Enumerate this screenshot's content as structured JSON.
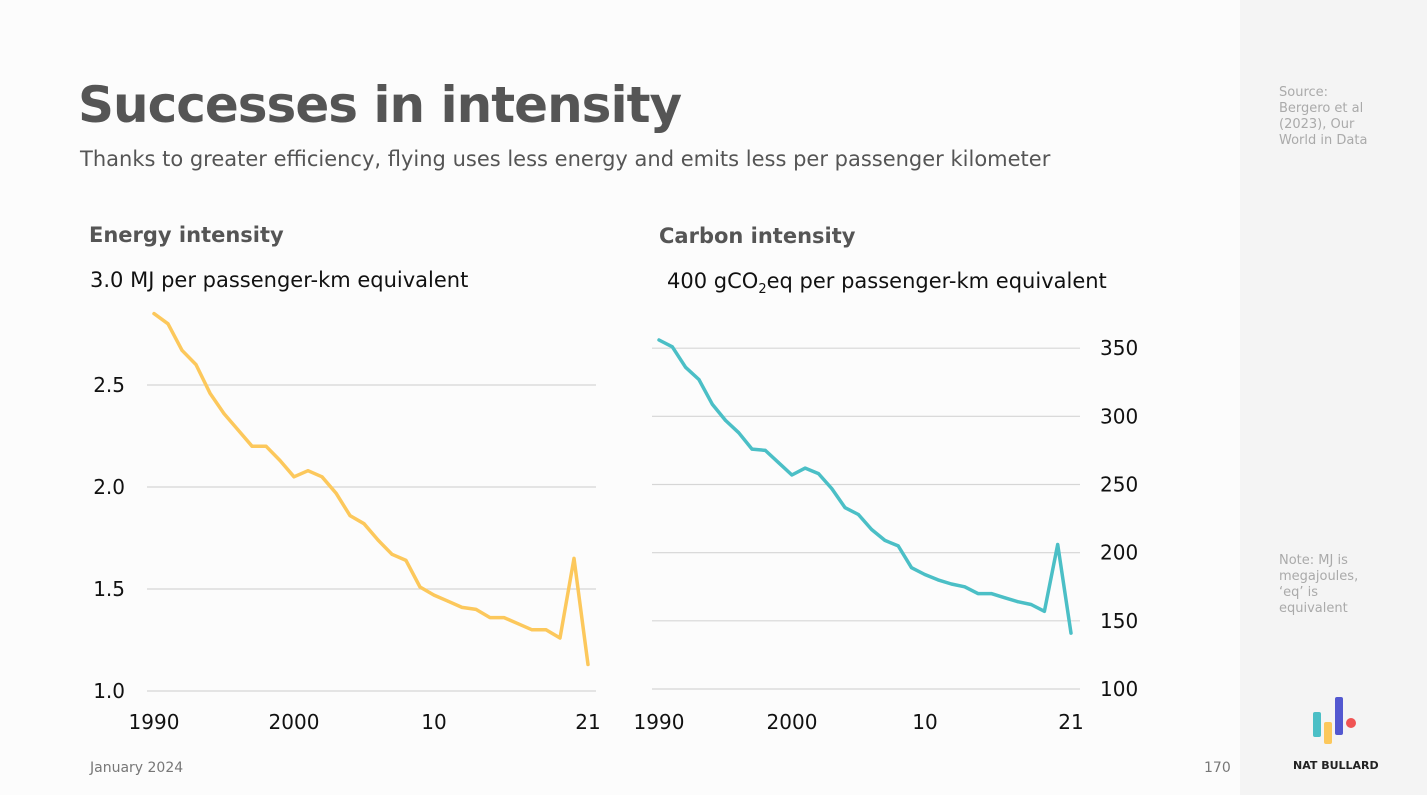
{
  "header": {
    "title": "Successes in intensity",
    "subtitle": "Thanks to greater efficiency, flying uses less energy and emits less per passenger kilometer"
  },
  "sidebar": {
    "source": "Source: Bergero et al (2023), Our World in Data",
    "note": "Note: MJ is megajoules, ‘eq’ is equivalent",
    "brand": "NAT BULLARD"
  },
  "footer": {
    "date": "January 2024",
    "page": "170"
  },
  "colors": {
    "energy": "#fcc85c",
    "carbon": "#4bbfc6",
    "logo": [
      "#4bbfc6",
      "#fcc85c",
      "#5358d0",
      "#f05454"
    ]
  },
  "chart_data": [
    {
      "type": "line",
      "title": "Energy intensity",
      "ylabel_prefix": "3.0",
      "ylabel": "MJ per passenger-km equivalent",
      "x": [
        1990,
        1991,
        1992,
        1993,
        1994,
        1995,
        1996,
        1997,
        1998,
        1999,
        2000,
        2001,
        2002,
        2003,
        2004,
        2005,
        2006,
        2007,
        2008,
        2009,
        2010,
        2011,
        2012,
        2013,
        2014,
        2015,
        2016,
        2017,
        2018,
        2019,
        2020,
        2021
      ],
      "values": [
        2.85,
        2.8,
        2.67,
        2.6,
        2.46,
        2.36,
        2.28,
        2.2,
        2.2,
        2.13,
        2.05,
        2.08,
        2.05,
        1.97,
        1.86,
        1.82,
        1.74,
        1.67,
        1.64,
        1.51,
        1.47,
        1.44,
        1.41,
        1.4,
        1.36,
        1.36,
        1.33,
        1.3,
        1.3,
        1.26,
        1.65,
        1.13
      ],
      "ylim": [
        1.0,
        3.0
      ],
      "yticks": [
        "1.0",
        "1.5",
        "2.0",
        "2.5"
      ],
      "xticks": [
        "1990",
        "2000",
        "10",
        "21"
      ],
      "grid": true,
      "yaxis": "left"
    },
    {
      "type": "line",
      "title": "Carbon intensity",
      "ylabel_prefix": "400",
      "ylabel_main": "gCO",
      "ylabel_sub": "2",
      "ylabel_rest": "eq per passenger-km equivalent",
      "x": [
        1990,
        1991,
        1992,
        1993,
        1994,
        1995,
        1996,
        1997,
        1998,
        1999,
        2000,
        2001,
        2002,
        2003,
        2004,
        2005,
        2006,
        2007,
        2008,
        2009,
        2010,
        2011,
        2012,
        2013,
        2014,
        2015,
        2016,
        2017,
        2018,
        2019,
        2020,
        2021
      ],
      "values": [
        356,
        351,
        336,
        327,
        309,
        297,
        288,
        276,
        275,
        266,
        257,
        262,
        258,
        247,
        233,
        228,
        217,
        209,
        205,
        189,
        184,
        180,
        177,
        175,
        170,
        170,
        167,
        164,
        162,
        157,
        206,
        141
      ],
      "ylim": [
        100,
        400
      ],
      "yticks": [
        "100",
        "150",
        "200",
        "250",
        "300",
        "350"
      ],
      "xticks": [
        "1990",
        "2000",
        "10",
        "21"
      ],
      "grid": true,
      "yaxis": "right"
    }
  ]
}
